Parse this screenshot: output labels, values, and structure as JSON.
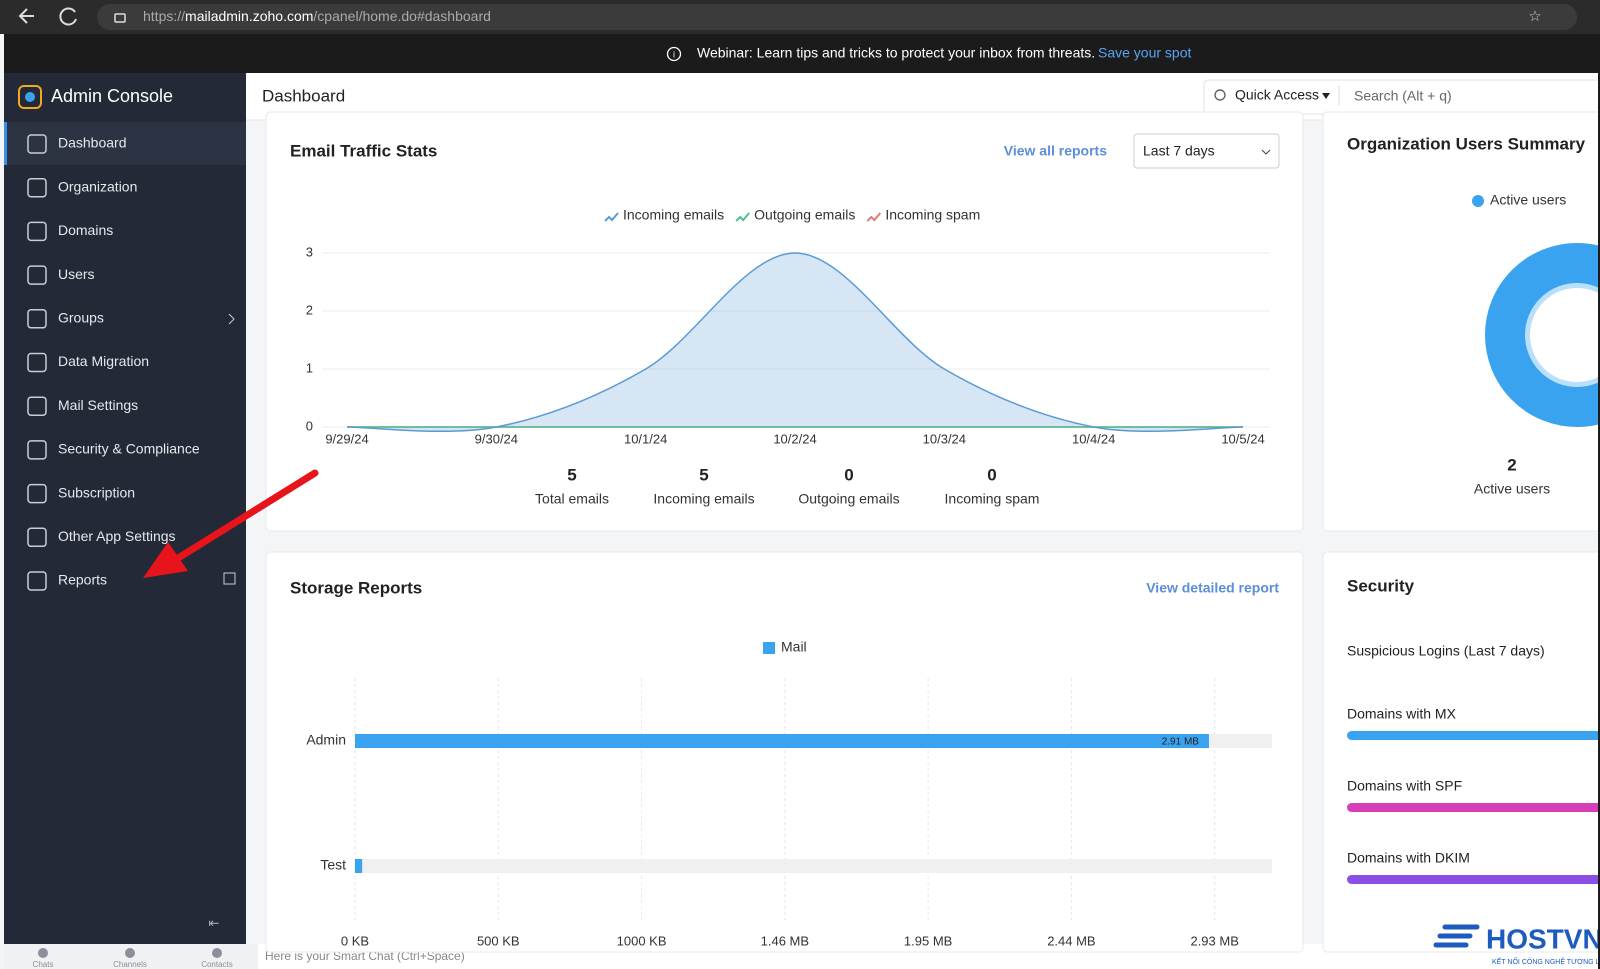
{
  "browser": {
    "url_prefix": "https://",
    "url_host": "mailadmin.zoho.com",
    "url_path": "/cpanel/home.do#dashboard"
  },
  "banner": {
    "text": "Webinar: Learn tips and tricks to protect your inbox from threats.",
    "link": "Save your spot"
  },
  "sidebar": {
    "title": "Admin Console",
    "items": [
      "Dashboard",
      "Organization",
      "Domains",
      "Users",
      "Groups",
      "Data Migration",
      "Mail Settings",
      "Security & Compliance",
      "Subscription",
      "Other App Settings",
      "Reports"
    ],
    "bottom": [
      "Chats",
      "Channels",
      "Contacts"
    ]
  },
  "header": {
    "title": "Dashboard",
    "quick_access": "Quick Access",
    "search": "Search (Alt + q)"
  },
  "email_traffic": {
    "type": "area",
    "title": "Email Traffic Stats",
    "link": "View all reports",
    "range": "Last 7 days",
    "x": [
      "9/29/24",
      "9/30/24",
      "10/1/24",
      "10/2/24",
      "10/3/24",
      "10/4/24",
      "10/5/24"
    ],
    "series": [
      {
        "name": "Incoming emails",
        "color": "#5b9bd5",
        "values": [
          0,
          0,
          1,
          3,
          1,
          0,
          0
        ]
      },
      {
        "name": "Outgoing emails",
        "color": "#4cc38a",
        "values": [
          0,
          0,
          0,
          0,
          0,
          0,
          0
        ]
      },
      {
        "name": "Incoming spam",
        "color": "#e07a7a",
        "values": [
          0,
          0,
          0,
          0,
          0,
          0,
          0
        ]
      }
    ],
    "ylim": [
      0,
      3
    ],
    "yticks": [
      0,
      1,
      2,
      3
    ],
    "grid": true,
    "stats": [
      {
        "value": 5,
        "label": "Total emails"
      },
      {
        "value": 5,
        "label": "Incoming emails"
      },
      {
        "value": 0,
        "label": "Outgoing emails"
      },
      {
        "value": 0,
        "label": "Incoming spam"
      }
    ]
  },
  "storage": {
    "type": "hbar",
    "title": "Storage Reports",
    "link": "View detailed report",
    "series_name": "Mail",
    "color": "#3aa3f0",
    "categories": [
      "Admin",
      "Test"
    ],
    "values": [
      2980,
      25
    ],
    "value_labels": [
      "2.91 MB",
      null
    ],
    "xlim": [
      0,
      3200
    ],
    "xticks": [
      {
        "value": 0,
        "label": "0 KB"
      },
      {
        "value": 500,
        "label": "500 KB"
      },
      {
        "value": 1000,
        "label": "1000 KB"
      },
      {
        "value": 1500,
        "label": "1.46 MB"
      },
      {
        "value": 2000,
        "label": "1.95 MB"
      },
      {
        "value": 2500,
        "label": "2.44 MB"
      },
      {
        "value": 3000,
        "label": "2.93 MB"
      }
    ]
  },
  "org_users": {
    "type": "donut",
    "title": "Organization Users Summary",
    "series": [
      {
        "name": "Active users",
        "color": "#3aa3f0",
        "values": [
          2
        ]
      }
    ]
  },
  "security": {
    "title": "Security",
    "suspicious": "Suspicious Logins (Last 7 days)",
    "items": [
      {
        "label": "Domains with MX",
        "color": "#3aa3f0"
      },
      {
        "label": "Domains with SPF",
        "color": "#d63fb8"
      },
      {
        "label": "Domains with DKIM",
        "color": "#8a4fe6"
      }
    ]
  },
  "smart_chat": "Here is your Smart Chat (Ctrl+Space)",
  "watermark": {
    "brand": "HOSTVN",
    "tagline": "KẾT NỐI CÔNG NGHỆ TƯƠNG LAI"
  }
}
